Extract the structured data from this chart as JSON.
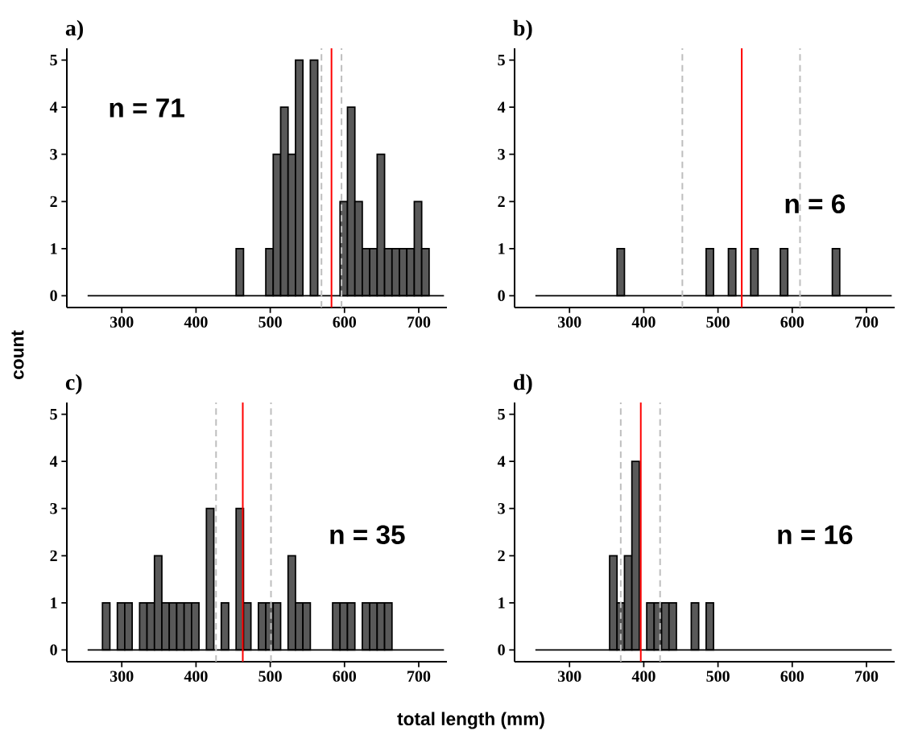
{
  "chart_data": [
    {
      "type": "histogram",
      "title": "a)",
      "ylabel": "count",
      "color": "#595959",
      "xlim": [
        226,
        738
      ],
      "ylim": [
        -0.25,
        5.25
      ],
      "xticks": [
        300,
        400,
        500,
        600,
        700
      ],
      "yticks": [
        0,
        1,
        2,
        3,
        4,
        5
      ],
      "bins": [
        254,
        264,
        274,
        284,
        294,
        304,
        314,
        324,
        334,
        344,
        354,
        364,
        374,
        384,
        394,
        404,
        414,
        424,
        434,
        444,
        454,
        464,
        474,
        484,
        494,
        504,
        514,
        524,
        534,
        544,
        554,
        564,
        574,
        584,
        594,
        604,
        614,
        624,
        634,
        644,
        654,
        664,
        674,
        684,
        694,
        704,
        714,
        724,
        734
      ],
      "values": [
        0,
        0,
        0,
        0,
        0,
        0,
        0,
        0,
        0,
        0,
        0,
        0,
        0,
        0,
        0,
        0,
        0,
        0,
        0,
        0,
        1,
        0,
        0,
        0,
        1,
        3,
        4,
        3,
        5,
        0,
        5,
        0,
        0,
        0,
        2,
        4,
        2,
        1,
        1,
        3,
        1,
        1,
        1,
        1,
        2,
        1,
        0,
        0
      ],
      "annotations": [
        "n = 71"
      ],
      "ref_lines": [
        {
          "axis": "y",
          "value": 0,
          "color": "#000000",
          "line_style": "solid"
        },
        {
          "axis": "x",
          "value": 569,
          "color": "#bebebe",
          "line_style": "dashed"
        },
        {
          "axis": "x",
          "value": 582.5,
          "color": "#ff0000",
          "line_style": "solid"
        },
        {
          "axis": "x",
          "value": 596,
          "color": "#bebebe",
          "line_style": "dashed"
        }
      ]
    },
    {
      "type": "histogram",
      "title": "b)",
      "color": "#595959",
      "xlim": [
        226,
        738
      ],
      "ylim": [
        -0.25,
        5.25
      ],
      "xticks": [
        300,
        400,
        500,
        600,
        700
      ],
      "yticks": [
        0,
        1,
        2,
        3,
        4,
        5
      ],
      "bins": [
        254,
        264,
        274,
        284,
        294,
        304,
        314,
        324,
        334,
        344,
        354,
        364,
        374,
        384,
        394,
        404,
        414,
        424,
        434,
        444,
        454,
        464,
        474,
        484,
        494,
        504,
        514,
        524,
        534,
        544,
        554,
        564,
        574,
        584,
        594,
        604,
        614,
        624,
        634,
        644,
        654,
        664,
        674,
        684,
        694,
        704,
        714,
        724,
        734
      ],
      "values": [
        0,
        0,
        0,
        0,
        0,
        0,
        0,
        0,
        0,
        0,
        0,
        1,
        0,
        0,
        0,
        0,
        0,
        0,
        0,
        0,
        0,
        0,
        0,
        1,
        0,
        0,
        1,
        0,
        0,
        1,
        0,
        0,
        0,
        1,
        0,
        0,
        0,
        0,
        0,
        0,
        1,
        0,
        0,
        0,
        0,
        0,
        0,
        0
      ],
      "annotations": [
        "n = 6"
      ],
      "ref_lines": [
        {
          "axis": "y",
          "value": 0,
          "color": "#000000",
          "line_style": "solid"
        },
        {
          "axis": "x",
          "value": 452,
          "color": "#bebebe",
          "line_style": "dashed"
        },
        {
          "axis": "x",
          "value": 532,
          "color": "#ff0000",
          "line_style": "solid"
        },
        {
          "axis": "x",
          "value": 610.5,
          "color": "#bebebe",
          "line_style": "dashed"
        }
      ]
    },
    {
      "type": "histogram",
      "title": "c)",
      "xlabel": "total length (mm)",
      "color": "#595959",
      "xlim": [
        226,
        738
      ],
      "ylim": [
        -0.25,
        5.25
      ],
      "xticks": [
        300,
        400,
        500,
        600,
        700
      ],
      "yticks": [
        0,
        1,
        2,
        3,
        4,
        5
      ],
      "bins": [
        254,
        264,
        274,
        284,
        294,
        304,
        314,
        324,
        334,
        344,
        354,
        364,
        374,
        384,
        394,
        404,
        414,
        424,
        434,
        444,
        454,
        464,
        474,
        484,
        494,
        504,
        514,
        524,
        534,
        544,
        554,
        564,
        574,
        584,
        594,
        604,
        614,
        624,
        634,
        644,
        654,
        664,
        674,
        684,
        694,
        704,
        714,
        724,
        734
      ],
      "values": [
        0,
        0,
        1,
        0,
        1,
        1,
        0,
        1,
        1,
        2,
        1,
        1,
        1,
        1,
        1,
        0,
        3,
        0,
        1,
        0,
        3,
        1,
        0,
        1,
        1,
        1,
        0,
        2,
        1,
        1,
        0,
        0,
        0,
        1,
        1,
        1,
        0,
        1,
        1,
        1,
        1,
        0,
        0,
        0,
        0,
        0,
        0,
        0
      ],
      "annotations": [
        "n = 35"
      ],
      "ref_lines": [
        {
          "axis": "y",
          "value": 0,
          "color": "#000000",
          "line_style": "solid"
        },
        {
          "axis": "x",
          "value": 427,
          "color": "#bebebe",
          "line_style": "dashed"
        },
        {
          "axis": "x",
          "value": 463,
          "color": "#ff0000",
          "line_style": "solid"
        },
        {
          "axis": "x",
          "value": 501,
          "color": "#bebebe",
          "line_style": "dashed"
        }
      ]
    },
    {
      "type": "histogram",
      "title": "d)",
      "color": "#595959",
      "xlim": [
        226,
        738
      ],
      "ylim": [
        -0.25,
        5.25
      ],
      "xticks": [
        300,
        400,
        500,
        600,
        700
      ],
      "yticks": [
        0,
        1,
        2,
        3,
        4,
        5
      ],
      "bins": [
        254,
        264,
        274,
        284,
        294,
        304,
        314,
        324,
        334,
        344,
        354,
        364,
        374,
        384,
        394,
        404,
        414,
        424,
        434,
        444,
        454,
        464,
        474,
        484,
        494,
        504,
        514,
        524,
        534,
        544,
        554,
        564,
        574,
        584,
        594,
        604,
        614,
        624,
        634,
        644,
        654,
        664,
        674,
        684,
        694,
        704,
        714,
        724,
        734
      ],
      "values": [
        0,
        0,
        0,
        0,
        0,
        0,
        0,
        0,
        0,
        0,
        2,
        1,
        2,
        4,
        0,
        1,
        1,
        1,
        1,
        0,
        0,
        1,
        0,
        1,
        0,
        0,
        0,
        0,
        0,
        0,
        0,
        0,
        0,
        0,
        0,
        0,
        0,
        0,
        0,
        0,
        0,
        0,
        0,
        0,
        0,
        0,
        0,
        0
      ],
      "annotations": [
        "n = 16"
      ],
      "ref_lines": [
        {
          "axis": "y",
          "value": 0,
          "color": "#000000",
          "line_style": "solid"
        },
        {
          "axis": "x",
          "value": 369,
          "color": "#bebebe",
          "line_style": "dashed"
        },
        {
          "axis": "x",
          "value": 396,
          "color": "#ff0000",
          "line_style": "solid"
        },
        {
          "axis": "x",
          "value": 422,
          "color": "#bebebe",
          "line_style": "dashed"
        }
      ]
    }
  ]
}
